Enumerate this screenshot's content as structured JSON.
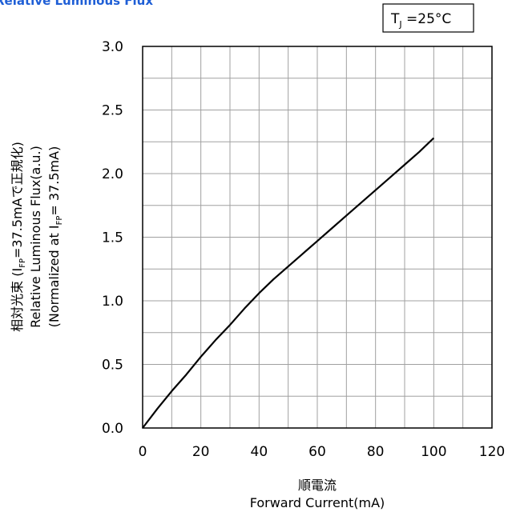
{
  "chart_data": {
    "type": "line",
    "title": "Relative Luminous Flux",
    "condition": {
      "label": "T",
      "sub": "J",
      "value": " =25°C"
    },
    "xlabel": [
      "順電流",
      "Forward Current(mA)"
    ],
    "ylabel": [
      "相対光束 (I",
      "FP",
      "=37.5mAで正規化)",
      "Relative Luminous Flux(a.u.)",
      "(Normalized  at I",
      "FP",
      "= 37.5mA)"
    ],
    "xlim": [
      0,
      120
    ],
    "ylim": [
      0,
      3.0
    ],
    "xticks": [
      0,
      20,
      40,
      60,
      80,
      100,
      120
    ],
    "yticks": [
      "0.0",
      "0.5",
      "1.0",
      "1.5",
      "2.0",
      "2.5",
      "3.0"
    ],
    "grid": true,
    "colors": {
      "title": "#1f5fd6",
      "line": "#000000",
      "grid": "#a0a0a0"
    },
    "series": [
      {
        "x": [
          0,
          5,
          10,
          15,
          20,
          25,
          30,
          35,
          40,
          45,
          50,
          55,
          60,
          65,
          70,
          75,
          80,
          85,
          90,
          95,
          100
        ],
        "values": [
          0,
          0.15,
          0.29,
          0.42,
          0.56,
          0.69,
          0.81,
          0.94,
          1.06,
          1.17,
          1.27,
          1.37,
          1.47,
          1.57,
          1.67,
          1.77,
          1.87,
          1.97,
          2.07,
          2.17,
          2.28
        ]
      }
    ]
  }
}
